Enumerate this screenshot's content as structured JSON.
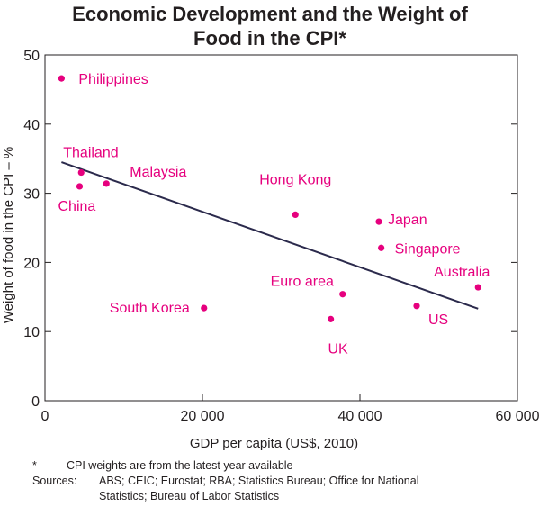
{
  "chart_data": {
    "type": "scatter",
    "title_line1": "Economic Development and the Weight of",
    "title_line2": "Food in the CPI*",
    "xlabel": "GDP per capita (US$, 2010)",
    "ylabel": "Weight of food in the CPI – %",
    "xlim": [
      0,
      60000
    ],
    "ylim": [
      0,
      50
    ],
    "xticks": [
      0,
      20000,
      40000,
      60000
    ],
    "xtick_labels": [
      "0",
      "20 000",
      "40 000",
      "60 000"
    ],
    "yticks": [
      0,
      10,
      20,
      30,
      40,
      50
    ],
    "ytick_labels": [
      "0",
      "10",
      "20",
      "30",
      "40",
      "50"
    ],
    "point_color": "#e6007e",
    "line_color": "#2b2a4c",
    "points": [
      {
        "name": "Philippines",
        "x": 2100,
        "y": 46.6
      },
      {
        "name": "Thailand",
        "x": 4600,
        "y": 33.0
      },
      {
        "name": "China",
        "x": 4400,
        "y": 31.0
      },
      {
        "name": "Malaysia",
        "x": 7800,
        "y": 31.4
      },
      {
        "name": "South Korea",
        "x": 20200,
        "y": 13.4
      },
      {
        "name": "Hong Kong",
        "x": 31800,
        "y": 26.9
      },
      {
        "name": "UK",
        "x": 36300,
        "y": 11.8
      },
      {
        "name": "Euro area",
        "x": 37800,
        "y": 15.4
      },
      {
        "name": "Japan",
        "x": 42400,
        "y": 25.9
      },
      {
        "name": "Singapore",
        "x": 42700,
        "y": 22.1
      },
      {
        "name": "US",
        "x": 47200,
        "y": 13.7
      },
      {
        "name": "Australia",
        "x": 55000,
        "y": 16.4
      }
    ],
    "trendline": {
      "x": [
        2100,
        55000
      ],
      "y": [
        34.5,
        13.3
      ]
    }
  },
  "notes": {
    "asterisk": "*",
    "footnote": "CPI weights are from the latest year available",
    "sources_label": "Sources:",
    "sources_line1": "ABS; CEIC; Eurostat; RBA; Statistics Bureau; Office for National",
    "sources_line2": "Statistics; Bureau of Labor Statistics"
  }
}
